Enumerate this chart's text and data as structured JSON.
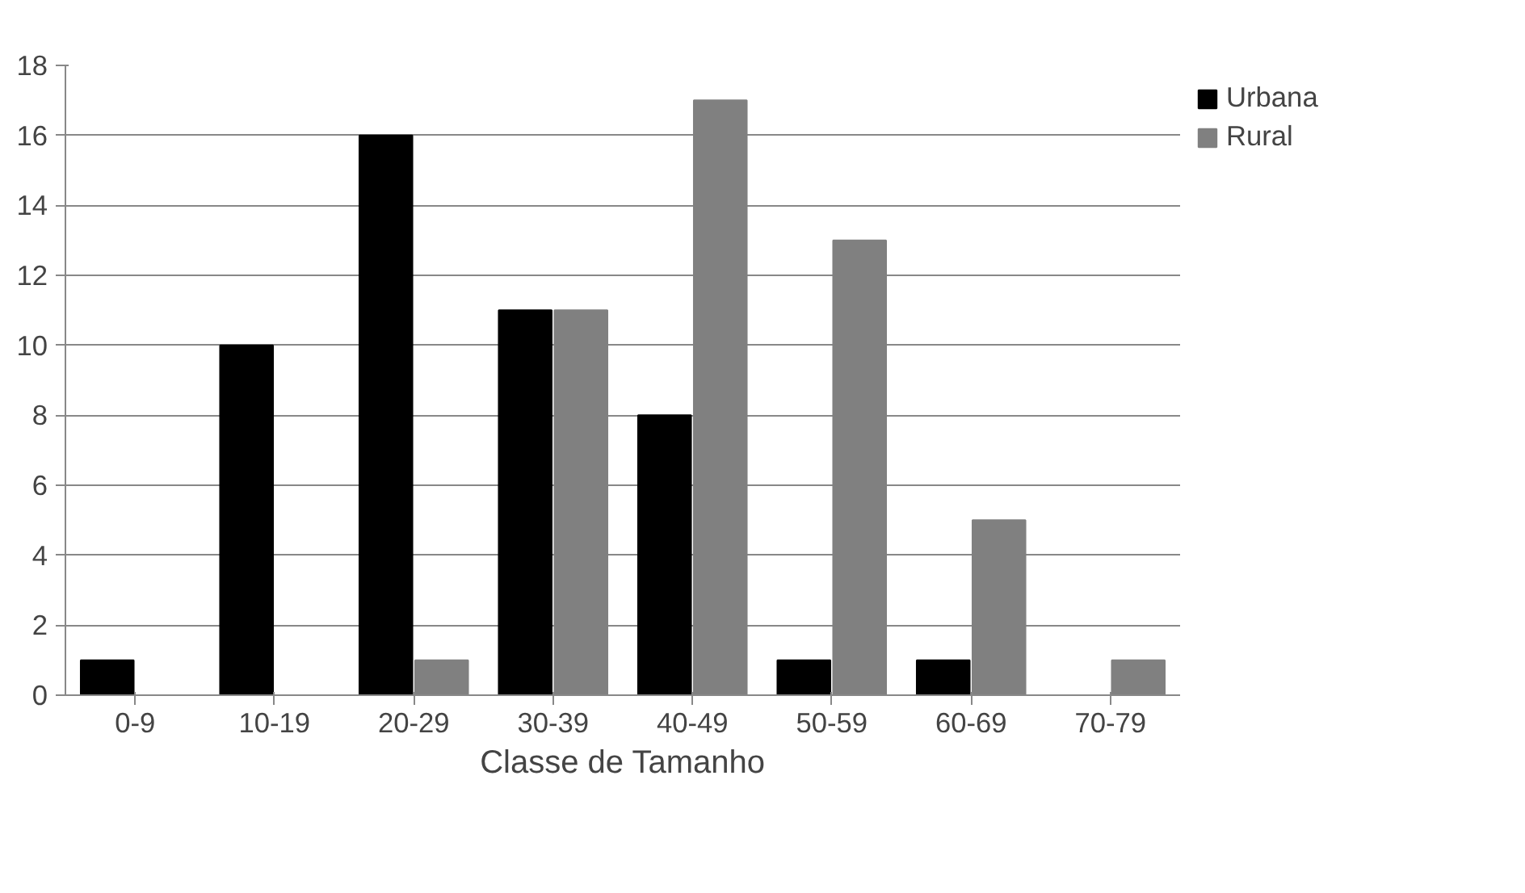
{
  "chart_data": {
    "type": "bar",
    "xlabel": "Classe de Tamanho",
    "categories": [
      "0-9",
      "10-19",
      "20-29",
      "30-39",
      "40-49",
      "50-59",
      "60-69",
      "70-79"
    ],
    "series": [
      {
        "name": "Urbana",
        "color": "#000000",
        "values": [
          1,
          10,
          16,
          11,
          8,
          1,
          1,
          0
        ]
      },
      {
        "name": "Rural",
        "color": "#808080",
        "values": [
          0,
          0,
          1,
          11,
          17,
          13,
          5,
          1
        ]
      }
    ],
    "ylim": [
      0,
      18
    ],
    "yticks": [
      0,
      2,
      4,
      6,
      8,
      10,
      12,
      14,
      16,
      18
    ],
    "grid": "y",
    "legend": "right"
  }
}
